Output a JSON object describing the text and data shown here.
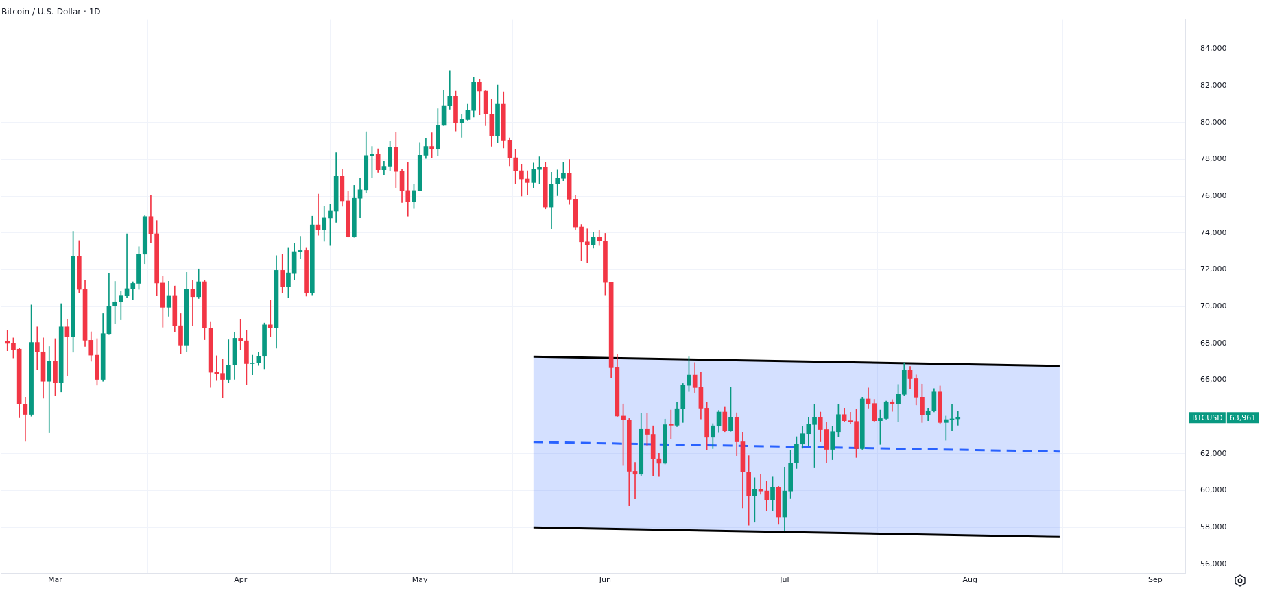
{
  "chart_data": {
    "type": "candlestick",
    "title": "Bitcoin / U.S. Dollar · 1D",
    "x": [
      "--02-22",
      "--02-23",
      "--02-24",
      "--02-25",
      "--02-26",
      "--02-27",
      "--02-28",
      "--02-29",
      "--03-01",
      "--03-02",
      "--03-03",
      "--03-04",
      "--03-05",
      "--03-06",
      "--03-07",
      "--03-08",
      "--03-09",
      "--03-10",
      "--03-11",
      "--03-12",
      "--03-13",
      "--03-14",
      "--03-15",
      "--03-16",
      "--03-17",
      "--03-18",
      "--03-19",
      "--03-20",
      "--03-21",
      "--03-22",
      "--03-23",
      "--03-24",
      "--03-25",
      "--03-26",
      "--03-27",
      "--03-28",
      "--03-29",
      "--03-30",
      "--03-31",
      "--04-01",
      "--04-02",
      "--04-03",
      "--04-04",
      "--04-05",
      "--04-06",
      "--04-07",
      "--04-08",
      "--04-09",
      "--04-10",
      "--04-11",
      "--04-12",
      "--04-13",
      "--04-14",
      "--04-15",
      "--04-16",
      "--04-17",
      "--04-18",
      "--04-19",
      "--04-20",
      "--04-21",
      "--04-22",
      "--04-23",
      "--04-24",
      "--04-25",
      "--04-26",
      "--04-27",
      "--04-28",
      "--04-29",
      "--04-30",
      "--05-01",
      "--05-02",
      "--05-03",
      "--05-04",
      "--05-05",
      "--05-06",
      "--05-07",
      "--05-08",
      "--05-09",
      "--05-10",
      "--05-11",
      "--05-12",
      "--05-13",
      "--05-14",
      "--05-15",
      "--05-16",
      "--05-17",
      "--05-18",
      "--05-19",
      "--05-20",
      "--05-21",
      "--05-22",
      "--05-23",
      "--05-24",
      "--05-25",
      "--05-26",
      "--05-27",
      "--05-28",
      "--05-29",
      "--05-30",
      "--05-31",
      "--06-01",
      "--06-02",
      "--06-03",
      "--06-04",
      "--06-05",
      "--06-06",
      "--06-07",
      "--06-08",
      "--06-09",
      "--06-10",
      "--06-11",
      "--06-12",
      "--06-13",
      "--06-14",
      "--06-15",
      "--06-16",
      "--06-17",
      "--06-18",
      "--06-19",
      "--06-20",
      "--06-21",
      "--06-22",
      "--06-23",
      "--06-24",
      "--06-25",
      "--06-26",
      "--06-27",
      "--06-28",
      "--06-29",
      "--06-30",
      "--07-01",
      "--07-02",
      "--07-03",
      "--07-04",
      "--07-05",
      "--07-06",
      "--07-07",
      "--07-08",
      "--07-09",
      "--07-10",
      "--07-11",
      "--07-12",
      "--07-13",
      "--07-14",
      "--07-15",
      "--07-16",
      "--07-17",
      "--07-18",
      "--07-19",
      "--07-20",
      "--07-21",
      "--07-22",
      "--07-23",
      "--07-24",
      "--07-25",
      "--07-26",
      "--07-27",
      "--07-28",
      "--07-29",
      "--07-30"
    ],
    "ohlc": [
      [
        68100,
        68700,
        67600,
        68000
      ],
      [
        68010,
        68300,
        67210,
        67670
      ],
      [
        67690,
        67730,
        63960,
        64700
      ],
      [
        64700,
        65080,
        62670,
        64140
      ],
      [
        64140,
        70090,
        64040,
        68050
      ],
      [
        68050,
        68900,
        66590,
        67540
      ],
      [
        67540,
        68300,
        65020,
        65940
      ],
      [
        65940,
        67830,
        63170,
        67050
      ],
      [
        67050,
        68260,
        65170,
        65850
      ],
      [
        65850,
        70160,
        65360,
        68900
      ],
      [
        68900,
        69310,
        66220,
        68380
      ],
      [
        68380,
        74090,
        67520,
        72730
      ],
      [
        72730,
        73590,
        70730,
        70940
      ],
      [
        70940,
        71440,
        67830,
        68170
      ],
      [
        68170,
        68630,
        67030,
        67360
      ],
      [
        67360,
        68260,
        65730,
        66040
      ],
      [
        66040,
        69620,
        65940,
        68530
      ],
      [
        68530,
        71820,
        68510,
        70030
      ],
      [
        70030,
        71370,
        69060,
        70260
      ],
      [
        70260,
        70850,
        69280,
        70580
      ],
      [
        70580,
        73960,
        70480,
        70980
      ],
      [
        70980,
        71350,
        70360,
        71260
      ],
      [
        71260,
        73260,
        70940,
        72850
      ],
      [
        72850,
        74950,
        72330,
        74900
      ],
      [
        74900,
        76040,
        73470,
        73960
      ],
      [
        73960,
        74680,
        70580,
        71280
      ],
      [
        71280,
        71650,
        68880,
        69960
      ],
      [
        69960,
        71380,
        69470,
        70570
      ],
      [
        70570,
        71120,
        68630,
        68960
      ],
      [
        68960,
        69620,
        67430,
        67910
      ],
      [
        67910,
        71860,
        67540,
        70940
      ],
      [
        70940,
        71410,
        68960,
        70540
      ],
      [
        70540,
        72050,
        70440,
        71350
      ],
      [
        71350,
        71440,
        68200,
        68840
      ],
      [
        68840,
        69190,
        65610,
        66430
      ],
      [
        66430,
        67330,
        65980,
        66370
      ],
      [
        66370,
        67150,
        65050,
        66040
      ],
      [
        66040,
        68200,
        65850,
        66820
      ],
      [
        66820,
        68590,
        66040,
        68280
      ],
      [
        68280,
        69310,
        67640,
        68140
      ],
      [
        68140,
        68730,
        65770,
        66900
      ],
      [
        66900,
        67360,
        66300,
        66940
      ],
      [
        66940,
        67520,
        66800,
        67300
      ],
      [
        67300,
        69110,
        66620,
        69010
      ],
      [
        69010,
        70340,
        68350,
        68860
      ],
      [
        68860,
        72770,
        67740,
        71970
      ],
      [
        71970,
        72860,
        70730,
        71100
      ],
      [
        71100,
        73180,
        70500,
        71830
      ],
      [
        71830,
        73460,
        71470,
        72990
      ],
      [
        72990,
        73830,
        72590,
        73050
      ],
      [
        73050,
        73180,
        70570,
        70730
      ],
      [
        70730,
        74920,
        70600,
        74440
      ],
      [
        74440,
        76120,
        73880,
        74170
      ],
      [
        74170,
        75450,
        73550,
        74820
      ],
      [
        74820,
        75560,
        73320,
        75190
      ],
      [
        75190,
        78370,
        74580,
        77090
      ],
      [
        77090,
        77460,
        75450,
        75750
      ],
      [
        75750,
        76260,
        73780,
        73820
      ],
      [
        73820,
        76590,
        73770,
        75890
      ],
      [
        75890,
        76970,
        74830,
        76350
      ],
      [
        76350,
        79510,
        76180,
        78210
      ],
      [
        78210,
        78710,
        77000,
        78270
      ],
      [
        78270,
        78580,
        77300,
        77440
      ],
      [
        77440,
        77900,
        77180,
        77630
      ],
      [
        77630,
        78980,
        77380,
        78670
      ],
      [
        78670,
        79480,
        76470,
        77340
      ],
      [
        77340,
        77460,
        75660,
        76310
      ],
      [
        76310,
        77860,
        74920,
        75720
      ],
      [
        75720,
        76630,
        75330,
        76310
      ],
      [
        76310,
        78920,
        76280,
        78230
      ],
      [
        78230,
        79140,
        78050,
        78710
      ],
      [
        78710,
        79450,
        78090,
        78560
      ],
      [
        78560,
        80760,
        78210,
        79850
      ],
      [
        79850,
        81750,
        79830,
        80920
      ],
      [
        80920,
        82830,
        80730,
        81440
      ],
      [
        81440,
        81710,
        79540,
        79990
      ],
      [
        79990,
        80470,
        79200,
        80170
      ],
      [
        80170,
        81040,
        80130,
        80660
      ],
      [
        80660,
        82460,
        80300,
        82190
      ],
      [
        82190,
        82370,
        80420,
        81710
      ],
      [
        81710,
        81750,
        79830,
        80470
      ],
      [
        80470,
        81290,
        78710,
        79270
      ],
      [
        79270,
        82040,
        78930,
        81040
      ],
      [
        81040,
        81670,
        78620,
        79050
      ],
      [
        79050,
        79170,
        77650,
        78090
      ],
      [
        78090,
        78560,
        76690,
        77380
      ],
      [
        77380,
        77750,
        76010,
        76940
      ],
      [
        76940,
        77380,
        76100,
        76740
      ],
      [
        76740,
        77800,
        76470,
        77460
      ],
      [
        77460,
        78150,
        76680,
        77560
      ],
      [
        77560,
        77840,
        75310,
        75410
      ],
      [
        75410,
        77300,
        74230,
        76660
      ],
      [
        76660,
        77430,
        76030,
        76970
      ],
      [
        76970,
        77840,
        76840,
        77250
      ],
      [
        77250,
        78000,
        75560,
        75810
      ],
      [
        75810,
        76030,
        74170,
        74330
      ],
      [
        74330,
        74460,
        72490,
        73520
      ],
      [
        73520,
        74230,
        72400,
        73360
      ],
      [
        73360,
        74020,
        73180,
        73770
      ],
      [
        73770,
        74170,
        73320,
        73570
      ],
      [
        73570,
        73980,
        70600,
        71310
      ],
      [
        71310,
        71310,
        66130,
        66680
      ],
      [
        66680,
        67430,
        64000,
        64050
      ],
      [
        64050,
        64710,
        61360,
        63840
      ],
      [
        63840,
        63920,
        59180,
        61050
      ],
      [
        61050,
        61530,
        59550,
        60890
      ],
      [
        60890,
        64210,
        60790,
        63330
      ],
      [
        63330,
        64210,
        62440,
        63060
      ],
      [
        63060,
        63520,
        60790,
        61730
      ],
      [
        61730,
        62020,
        60760,
        61480
      ],
      [
        61480,
        63890,
        61440,
        63580
      ],
      [
        63580,
        64380,
        62810,
        63550
      ],
      [
        63550,
        64790,
        63470,
        64450
      ],
      [
        64450,
        65820,
        63700,
        65720
      ],
      [
        65720,
        67270,
        65380,
        66280
      ],
      [
        66280,
        66960,
        65330,
        65600
      ],
      [
        65600,
        66430,
        63890,
        64480
      ],
      [
        64480,
        64790,
        62210,
        62900
      ],
      [
        62900,
        63640,
        62280,
        63520
      ],
      [
        63520,
        64360,
        63180,
        64270
      ],
      [
        64270,
        64570,
        63200,
        63240
      ],
      [
        63240,
        65600,
        63220,
        63960
      ],
      [
        63960,
        64230,
        61900,
        62650
      ],
      [
        62650,
        63180,
        59060,
        61010
      ],
      [
        61010,
        61900,
        58120,
        59710
      ],
      [
        59710,
        60700,
        58280,
        60060
      ],
      [
        60060,
        60890,
        59800,
        59980
      ],
      [
        59980,
        60510,
        58880,
        59500
      ],
      [
        59500,
        60740,
        58880,
        60180
      ],
      [
        60180,
        60230,
        58160,
        58570
      ],
      [
        58570,
        61280,
        57810,
        59980
      ],
      [
        59980,
        62180,
        59560,
        61490
      ],
      [
        61490,
        62930,
        61200,
        62530
      ],
      [
        62530,
        63490,
        62300,
        63090
      ],
      [
        63090,
        63990,
        62430,
        63590
      ],
      [
        63590,
        64670,
        61270,
        63990
      ],
      [
        63990,
        64270,
        62650,
        63320
      ],
      [
        63320,
        63740,
        61520,
        62240
      ],
      [
        62240,
        63490,
        61680,
        63200
      ],
      [
        63200,
        64670,
        62930,
        64130
      ],
      [
        64130,
        64480,
        63760,
        63800
      ],
      [
        63800,
        64260,
        63610,
        63760
      ],
      [
        63760,
        64420,
        61800,
        62280
      ],
      [
        62280,
        65080,
        62240,
        64980
      ],
      [
        64980,
        65580,
        64480,
        64730
      ],
      [
        64730,
        64960,
        63740,
        63800
      ],
      [
        63800,
        64380,
        62510,
        63920
      ],
      [
        63920,
        64860,
        63880,
        64820
      ],
      [
        64820,
        64950,
        64300,
        64710
      ],
      [
        64710,
        65770,
        63760,
        65230
      ],
      [
        65230,
        66950,
        65170,
        66540
      ],
      [
        66540,
        66750,
        65540,
        66080
      ],
      [
        66080,
        66290,
        64650,
        65080
      ],
      [
        65080,
        65790,
        63700,
        64110
      ],
      [
        64110,
        64480,
        63800,
        64330
      ],
      [
        64330,
        65540,
        64270,
        65360
      ],
      [
        65360,
        65690,
        63610,
        63700
      ],
      [
        63700,
        64050,
        62740,
        63860
      ],
      [
        63860,
        64670,
        63240,
        63900
      ],
      [
        63900,
        64330,
        63550,
        63961
      ]
    ],
    "series": [
      {
        "type": "line",
        "x": [
          "--05-20",
          "--08-16"
        ],
        "values": [
          67280,
          66770
        ],
        "color": "#000000"
      },
      {
        "type": "line",
        "x": [
          "--05-20",
          "--08-16"
        ],
        "values": [
          58000,
          57480
        ],
        "color": "#000000"
      },
      {
        "type": "line",
        "x": [
          "--05-20",
          "--08-16"
        ],
        "values": [
          62640,
          62120
        ],
        "lower": [
          58000,
          57480
        ],
        "upper": [
          67280,
          66770
        ],
        "color": "#2962ff",
        "line_style": "dashed"
      }
    ],
    "xlim": [
      "--02-21",
      "--09-06"
    ],
    "xticks": [
      {
        "value": "--03-01",
        "label": "Mar"
      },
      {
        "value": "--04-01",
        "label": "Apr"
      },
      {
        "value": "--05-01",
        "label": "May"
      },
      {
        "value": "--06-01",
        "label": "Jun"
      },
      {
        "value": "--07-01",
        "label": "Jul"
      },
      {
        "value": "--08-01",
        "label": "Aug"
      },
      {
        "value": "--09-01",
        "label": "Sep"
      }
    ],
    "ylim": [
      55500,
      85600
    ],
    "yticks": [
      {
        "value": 56000,
        "label": "56,000"
      },
      {
        "value": 58000,
        "label": "58,000"
      },
      {
        "value": 60000,
        "label": "60,000"
      },
      {
        "value": 62000,
        "label": "62,000"
      },
      {
        "value": 64000,
        "label": null
      },
      {
        "value": 66000,
        "label": "66,000"
      },
      {
        "value": 68000,
        "label": "68,000"
      },
      {
        "value": 70000,
        "label": "70,000"
      },
      {
        "value": 72000,
        "label": "72,000"
      },
      {
        "value": 74000,
        "label": "74,000"
      },
      {
        "value": 76000,
        "label": "76,000"
      },
      {
        "value": 78000,
        "label": "78,000"
      },
      {
        "value": 80000,
        "label": "80,000"
      },
      {
        "value": 82000,
        "label": "82,000"
      },
      {
        "value": 84000,
        "label": "84,000"
      }
    ],
    "grid": true,
    "annotations": [
      "BTCUSD",
      "63,961"
    ]
  }
}
